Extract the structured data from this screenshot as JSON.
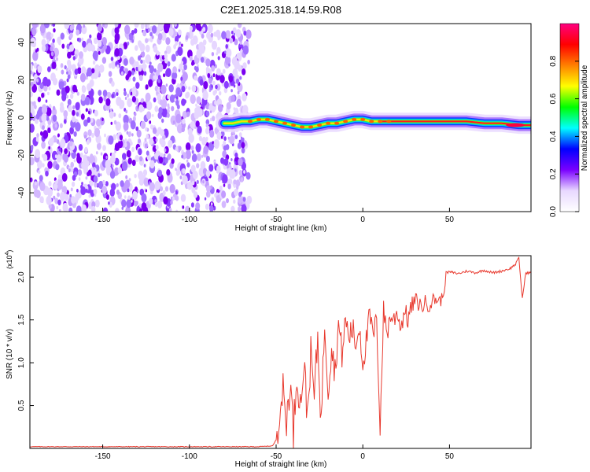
{
  "figure_title": "C2E1.2025.318.14.59.R08",
  "chart_data": [
    {
      "type": "heatmap",
      "title": "",
      "xlabel": "Height of straight line (km)",
      "ylabel": "Frequency (Hz)",
      "xlim": [
        -192,
        97
      ],
      "ylim": [
        -50,
        50
      ],
      "xticks": [
        -150,
        -100,
        -50,
        0,
        50
      ],
      "yticks": [
        -40,
        -20,
        0,
        20,
        40
      ],
      "noise_region_x": [
        -192,
        -69
      ],
      "signal_ridge": {
        "x": [
          -80,
          -75,
          -70,
          -65,
          -60,
          -55,
          -50,
          -45,
          -40,
          -35,
          -30,
          -25,
          -20,
          -15,
          -10,
          -5,
          0,
          5,
          10,
          15,
          20,
          30,
          40,
          50,
          60,
          70,
          80,
          90,
          97
        ],
        "freq": [
          -3,
          -3,
          -2,
          -2,
          -1,
          -1,
          -2,
          -3,
          -4,
          -5,
          -5,
          -4,
          -3,
          -3,
          -2,
          -1,
          -1,
          -2,
          -2,
          -2,
          -2,
          -2,
          -2,
          -2,
          -2,
          -3,
          -3,
          -4,
          -4
        ]
      },
      "colorbar": {
        "label": "Normalized spectral amplitude",
        "range": [
          0,
          1
        ],
        "ticks": [
          "0.0",
          "0.2",
          "0.4",
          "0.6",
          "0.8"
        ],
        "colors": [
          "#ffffff",
          "#e8d8ff",
          "#7a00ff",
          "#0000ff",
          "#00ffff",
          "#00ff00",
          "#ffff00",
          "#ff8000",
          "#ff0000",
          "#ff0080"
        ]
      }
    },
    {
      "type": "line",
      "title": "",
      "xlabel": "Height of straight line (km)",
      "ylabel": "SNR (10 * v/v)",
      "y_multiplier": "(x10",
      "y_multiplier_exp": "4",
      "y_multiplier_close": ")",
      "xlim": [
        -192,
        97
      ],
      "ylim": [
        0,
        2.25
      ],
      "xticks": [
        -150,
        -100,
        -50,
        0,
        50
      ],
      "yticks": [
        "0.5",
        "1.0",
        "1.5",
        "2.0"
      ],
      "line_color": "#e8392e",
      "x": [
        -192,
        -100,
        -60,
        -52,
        -50,
        -48,
        -46,
        -44,
        -42,
        -40,
        -38,
        -36,
        -34,
        -32,
        -30,
        -28,
        -26,
        -24,
        -22,
        -20,
        -18,
        -16,
        -14,
        -12,
        -10,
        -8,
        -6,
        -4,
        -2,
        0,
        2,
        4,
        6,
        8,
        10,
        12,
        14,
        16,
        18,
        20,
        22,
        24,
        26,
        28,
        30,
        32,
        34,
        36,
        38,
        40,
        42,
        44,
        46,
        48,
        50,
        55,
        60,
        65,
        70,
        75,
        80,
        85,
        88,
        90,
        92,
        94,
        97
      ],
      "y": [
        0.02,
        0.02,
        0.02,
        0.03,
        0.1,
        0.5,
        0.65,
        0.3,
        0.8,
        0.2,
        0.9,
        0.5,
        1.0,
        0.4,
        1.1,
        0.6,
        1.3,
        0.3,
        1.5,
        0.7,
        1.2,
        0.9,
        1.45,
        1.1,
        1.5,
        1.3,
        1.4,
        1.2,
        1.45,
        1.0,
        1.25,
        1.55,
        1.3,
        1.5,
        0.25,
        1.6,
        1.35,
        1.55,
        1.5,
        1.6,
        1.4,
        1.62,
        1.5,
        1.65,
        1.72,
        1.7,
        1.65,
        1.7,
        1.68,
        1.72,
        1.75,
        1.72,
        1.75,
        2.05,
        2.06,
        2.04,
        2.07,
        2.05,
        2.08,
        2.05,
        2.07,
        2.1,
        2.15,
        2.22,
        1.75,
        2.05,
        2.05
      ]
    }
  ]
}
